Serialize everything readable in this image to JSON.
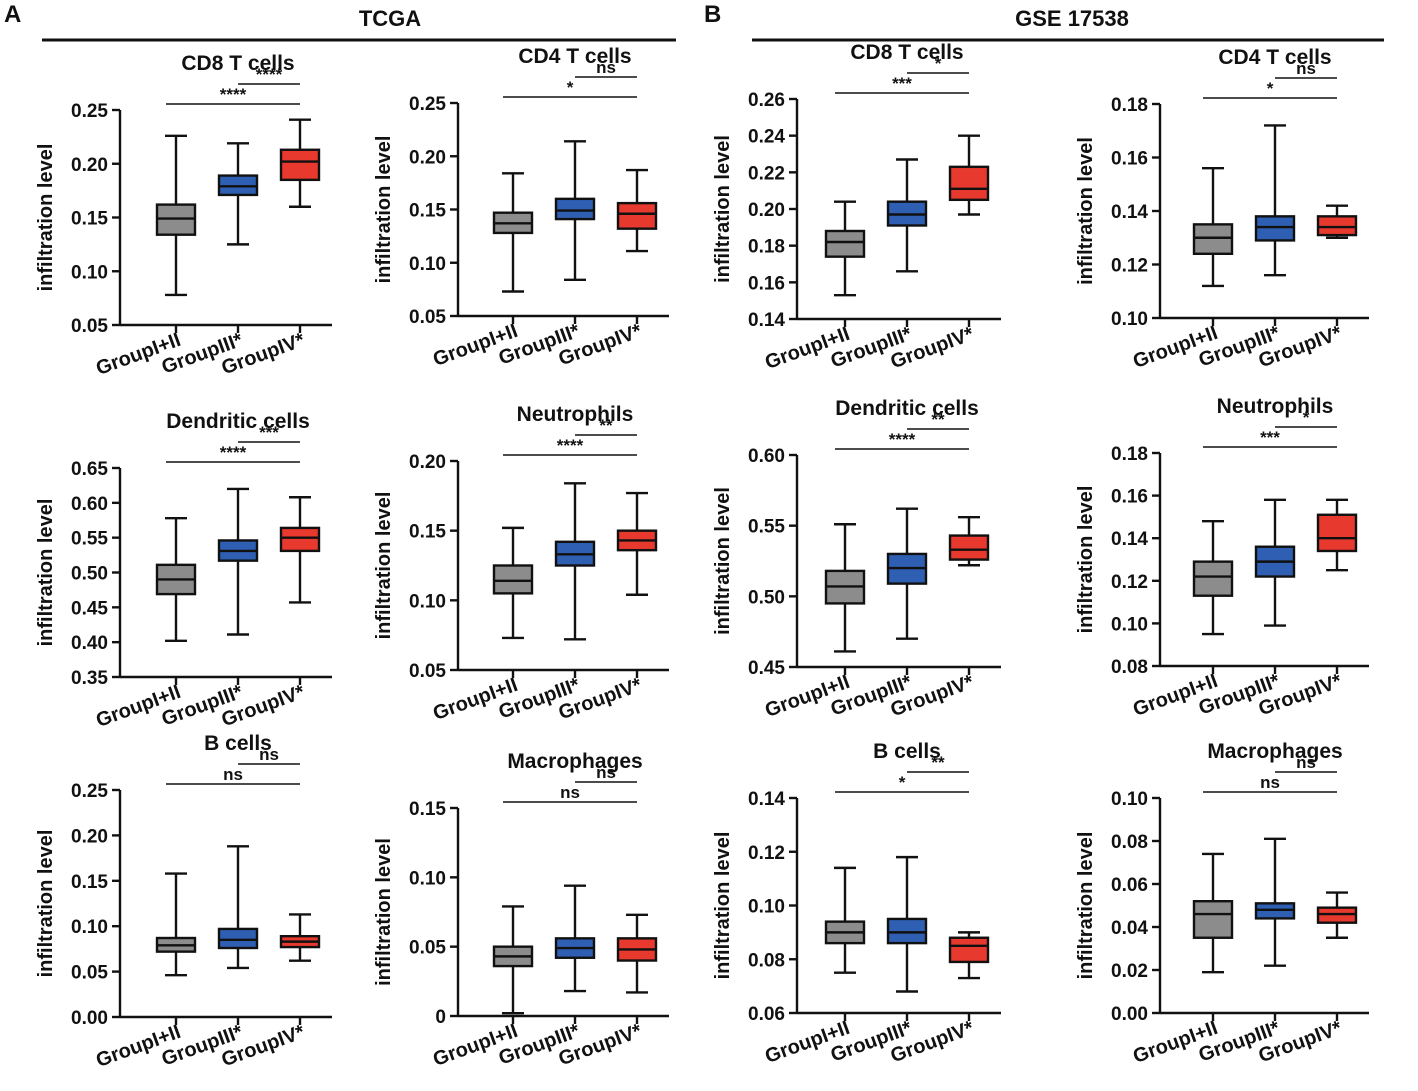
{
  "figure": {
    "panels": [
      {
        "letter": "A",
        "title": "TCGA"
      },
      {
        "letter": "B",
        "title": "GSE 17538"
      }
    ],
    "colors": {
      "group1": "#8c8c8c",
      "group2": "#2f5fb3",
      "group3": "#e8392e",
      "ink": "#111111"
    }
  },
  "chart_data": [
    {
      "type": "box",
      "panel": "A",
      "title": "CD8 T cells",
      "ylabel": "infiltration level",
      "categories": [
        "GroupI+II",
        "GroupIII*",
        "GroupIV*"
      ],
      "ylim": [
        0.05,
        0.25
      ],
      "yticks": [
        0.05,
        0.1,
        0.15,
        0.2,
        0.25
      ],
      "ytick_labels": [
        "0.05",
        "0.10",
        "0.15",
        "0.20",
        "0.25"
      ],
      "series": [
        {
          "name": "GroupI+II",
          "min": 0.078,
          "q1": 0.134,
          "median": 0.149,
          "q3": 0.162,
          "max": 0.226
        },
        {
          "name": "GroupIII*",
          "min": 0.125,
          "q1": 0.171,
          "median": 0.179,
          "q3": 0.189,
          "max": 0.219
        },
        {
          "name": "GroupIV*",
          "min": 0.16,
          "q1": 0.185,
          "median": 0.202,
          "q3": 0.213,
          "max": 0.241
        }
      ],
      "significance": [
        {
          "from": 0,
          "to": 2,
          "label": "****"
        },
        {
          "from": 1,
          "to": 2,
          "label": "****"
        }
      ]
    },
    {
      "type": "box",
      "panel": "A",
      "title": "CD4 T cells",
      "ylabel": "infiltration level",
      "categories": [
        "GroupI+II",
        "GroupIII*",
        "GroupIV*"
      ],
      "ylim": [
        0.05,
        0.25
      ],
      "yticks": [
        0.05,
        0.1,
        0.15,
        0.2,
        0.25
      ],
      "ytick_labels": [
        "0.05",
        "0.10",
        "0.15",
        "0.20",
        "0.25"
      ],
      "series": [
        {
          "name": "GroupI+II",
          "min": 0.073,
          "q1": 0.128,
          "median": 0.137,
          "q3": 0.147,
          "max": 0.184
        },
        {
          "name": "GroupIII*",
          "min": 0.084,
          "q1": 0.141,
          "median": 0.149,
          "q3": 0.16,
          "max": 0.214
        },
        {
          "name": "GroupIV*",
          "min": 0.111,
          "q1": 0.132,
          "median": 0.146,
          "q3": 0.156,
          "max": 0.187
        }
      ],
      "significance": [
        {
          "from": 0,
          "to": 2,
          "label": "*"
        },
        {
          "from": 1,
          "to": 2,
          "label": "ns"
        }
      ]
    },
    {
      "type": "box",
      "panel": "B",
      "title": "CD8 T cells",
      "ylabel": "infiltration level",
      "categories": [
        "GroupI+II",
        "GroupIII*",
        "GroupIV*"
      ],
      "ylim": [
        0.14,
        0.26
      ],
      "yticks": [
        0.14,
        0.16,
        0.18,
        0.2,
        0.22,
        0.24,
        0.26
      ],
      "ytick_labels": [
        "0.14",
        "0.16",
        "0.18",
        "0.20",
        "0.22",
        "0.24",
        "0.26"
      ],
      "series": [
        {
          "name": "GroupI+II",
          "min": 0.153,
          "q1": 0.174,
          "median": 0.182,
          "q3": 0.188,
          "max": 0.204
        },
        {
          "name": "GroupIII*",
          "min": 0.166,
          "q1": 0.191,
          "median": 0.197,
          "q3": 0.204,
          "max": 0.227
        },
        {
          "name": "GroupIV*",
          "min": 0.197,
          "q1": 0.205,
          "median": 0.211,
          "q3": 0.223,
          "max": 0.24
        }
      ],
      "significance": [
        {
          "from": 0,
          "to": 2,
          "label": "***"
        },
        {
          "from": 1,
          "to": 2,
          "label": "*"
        }
      ]
    },
    {
      "type": "box",
      "panel": "B",
      "title": "CD4 T cells",
      "ylabel": "infiltration level",
      "categories": [
        "GroupI+II",
        "GroupIII*",
        "GroupIV*"
      ],
      "ylim": [
        0.1,
        0.18
      ],
      "yticks": [
        0.1,
        0.12,
        0.14,
        0.16,
        0.18
      ],
      "ytick_labels": [
        "0.10",
        "0.12",
        "0.14",
        "0.16",
        "0.18"
      ],
      "series": [
        {
          "name": "GroupI+II",
          "min": 0.112,
          "q1": 0.124,
          "median": 0.13,
          "q3": 0.135,
          "max": 0.156
        },
        {
          "name": "GroupIII*",
          "min": 0.116,
          "q1": 0.129,
          "median": 0.134,
          "q3": 0.138,
          "max": 0.172
        },
        {
          "name": "GroupIV*",
          "min": 0.13,
          "q1": 0.131,
          "median": 0.134,
          "q3": 0.138,
          "max": 0.142
        }
      ],
      "significance": [
        {
          "from": 0,
          "to": 2,
          "label": "*"
        },
        {
          "from": 1,
          "to": 2,
          "label": "ns"
        }
      ]
    },
    {
      "type": "box",
      "panel": "A",
      "title": "Dendritic cells",
      "ylabel": "infiltration level",
      "categories": [
        "GroupI+II",
        "GroupIII*",
        "GroupIV*"
      ],
      "ylim": [
        0.35,
        0.65
      ],
      "yticks": [
        0.35,
        0.4,
        0.45,
        0.5,
        0.55,
        0.6,
        0.65
      ],
      "ytick_labels": [
        "0.35",
        "0.40",
        "0.45",
        "0.50",
        "0.55",
        "0.60",
        "0.65"
      ],
      "series": [
        {
          "name": "GroupI+II",
          "min": 0.402,
          "q1": 0.469,
          "median": 0.49,
          "q3": 0.511,
          "max": 0.578
        },
        {
          "name": "GroupIII*",
          "min": 0.411,
          "q1": 0.517,
          "median": 0.531,
          "q3": 0.546,
          "max": 0.62
        },
        {
          "name": "GroupIV*",
          "min": 0.457,
          "q1": 0.531,
          "median": 0.55,
          "q3": 0.564,
          "max": 0.608
        }
      ],
      "significance": [
        {
          "from": 0,
          "to": 2,
          "label": "****"
        },
        {
          "from": 1,
          "to": 2,
          "label": "***"
        }
      ]
    },
    {
      "type": "box",
      "panel": "A",
      "title": "Neutrophils",
      "ylabel": "infiltration level",
      "categories": [
        "GroupI+II",
        "GroupIII*",
        "GroupIV*"
      ],
      "ylim": [
        0.05,
        0.2
      ],
      "yticks": [
        0.05,
        0.1,
        0.15,
        0.2
      ],
      "ytick_labels": [
        "0.05",
        "0.10",
        "0.15",
        "0.20"
      ],
      "series": [
        {
          "name": "GroupI+II",
          "min": 0.073,
          "q1": 0.105,
          "median": 0.114,
          "q3": 0.125,
          "max": 0.152
        },
        {
          "name": "GroupIII*",
          "min": 0.072,
          "q1": 0.125,
          "median": 0.133,
          "q3": 0.142,
          "max": 0.184
        },
        {
          "name": "GroupIV*",
          "min": 0.104,
          "q1": 0.136,
          "median": 0.143,
          "q3": 0.15,
          "max": 0.177
        }
      ],
      "significance": [
        {
          "from": 0,
          "to": 2,
          "label": "****"
        },
        {
          "from": 1,
          "to": 2,
          "label": "**"
        }
      ]
    },
    {
      "type": "box",
      "panel": "B",
      "title": "Dendritic cells",
      "ylabel": "infiltration level",
      "categories": [
        "GroupI+II",
        "GroupIII*",
        "GroupIV*"
      ],
      "ylim": [
        0.45,
        0.6
      ],
      "yticks": [
        0.45,
        0.5,
        0.55,
        0.6
      ],
      "ytick_labels": [
        "0.45",
        "0.50",
        "0.55",
        "0.60"
      ],
      "series": [
        {
          "name": "GroupI+II",
          "min": 0.461,
          "q1": 0.495,
          "median": 0.507,
          "q3": 0.518,
          "max": 0.551
        },
        {
          "name": "GroupIII*",
          "min": 0.47,
          "q1": 0.509,
          "median": 0.52,
          "q3": 0.53,
          "max": 0.562
        },
        {
          "name": "GroupIV*",
          "min": 0.522,
          "q1": 0.526,
          "median": 0.533,
          "q3": 0.543,
          "max": 0.556
        }
      ],
      "significance": [
        {
          "from": 0,
          "to": 2,
          "label": "****"
        },
        {
          "from": 1,
          "to": 2,
          "label": "**"
        }
      ]
    },
    {
      "type": "box",
      "panel": "B",
      "title": "Neutrophils",
      "ylabel": "infiltration level",
      "categories": [
        "GroupI+II",
        "GroupIII*",
        "GroupIV*"
      ],
      "ylim": [
        0.08,
        0.18
      ],
      "yticks": [
        0.08,
        0.1,
        0.12,
        0.14,
        0.16,
        0.18
      ],
      "ytick_labels": [
        "0.08",
        "0.10",
        "0.12",
        "0.14",
        "0.16",
        "0.18"
      ],
      "series": [
        {
          "name": "GroupI+II",
          "min": 0.095,
          "q1": 0.113,
          "median": 0.122,
          "q3": 0.129,
          "max": 0.148
        },
        {
          "name": "GroupIII*",
          "min": 0.099,
          "q1": 0.122,
          "median": 0.129,
          "q3": 0.136,
          "max": 0.158
        },
        {
          "name": "GroupIV*",
          "min": 0.125,
          "q1": 0.134,
          "median": 0.14,
          "q3": 0.151,
          "max": 0.158
        }
      ],
      "significance": [
        {
          "from": 0,
          "to": 2,
          "label": "***"
        },
        {
          "from": 1,
          "to": 2,
          "label": "*"
        }
      ]
    },
    {
      "type": "box",
      "panel": "A",
      "title": "B cells",
      "ylabel": "infiltration level",
      "categories": [
        "GroupI+II",
        "GroupIII*",
        "GroupIV*"
      ],
      "ylim": [
        0.0,
        0.25
      ],
      "yticks": [
        0.0,
        0.05,
        0.1,
        0.15,
        0.2,
        0.25
      ],
      "ytick_labels": [
        "0.00",
        "0.05",
        "0.10",
        "0.15",
        "0.20",
        "0.25"
      ],
      "series": [
        {
          "name": "GroupI+II",
          "min": 0.046,
          "q1": 0.072,
          "median": 0.079,
          "q3": 0.087,
          "max": 0.158
        },
        {
          "name": "GroupIII*",
          "min": 0.054,
          "q1": 0.076,
          "median": 0.085,
          "q3": 0.097,
          "max": 0.188
        },
        {
          "name": "GroupIV*",
          "min": 0.062,
          "q1": 0.077,
          "median": 0.083,
          "q3": 0.089,
          "max": 0.113
        }
      ],
      "significance": [
        {
          "from": 0,
          "to": 2,
          "label": "ns"
        },
        {
          "from": 1,
          "to": 2,
          "label": "ns"
        }
      ]
    },
    {
      "type": "box",
      "panel": "A",
      "title": "Macrophages",
      "ylabel": "infiltration level",
      "categories": [
        "GroupI+II",
        "GroupIII*",
        "GroupIV*"
      ],
      "ylim": [
        0.0,
        0.15
      ],
      "yticks": [
        0.0,
        0.05,
        0.1,
        0.15
      ],
      "ytick_labels": [
        "0",
        "0.05",
        "0.10",
        "0.15"
      ],
      "series": [
        {
          "name": "GroupI+II",
          "min": 0.002,
          "q1": 0.036,
          "median": 0.043,
          "q3": 0.05,
          "max": 0.079
        },
        {
          "name": "GroupIII*",
          "min": 0.018,
          "q1": 0.042,
          "median": 0.049,
          "q3": 0.056,
          "max": 0.094
        },
        {
          "name": "GroupIV*",
          "min": 0.017,
          "q1": 0.04,
          "median": 0.048,
          "q3": 0.056,
          "max": 0.073
        }
      ],
      "significance": [
        {
          "from": 0,
          "to": 2,
          "label": "ns"
        },
        {
          "from": 1,
          "to": 2,
          "label": "ns"
        }
      ]
    },
    {
      "type": "box",
      "panel": "B",
      "title": "B cells",
      "ylabel": "infiltration level",
      "categories": [
        "GroupI+II",
        "GroupIII*",
        "GroupIV*"
      ],
      "ylim": [
        0.06,
        0.14
      ],
      "yticks": [
        0.06,
        0.08,
        0.1,
        0.12,
        0.14
      ],
      "ytick_labels": [
        "0.06",
        "0.08",
        "0.10",
        "0.12",
        "0.14"
      ],
      "series": [
        {
          "name": "GroupI+II",
          "min": 0.075,
          "q1": 0.086,
          "median": 0.09,
          "q3": 0.094,
          "max": 0.114
        },
        {
          "name": "GroupIII*",
          "min": 0.068,
          "q1": 0.086,
          "median": 0.09,
          "q3": 0.095,
          "max": 0.118
        },
        {
          "name": "GroupIV*",
          "min": 0.073,
          "q1": 0.079,
          "median": 0.085,
          "q3": 0.088,
          "max": 0.09
        }
      ],
      "significance": [
        {
          "from": 0,
          "to": 2,
          "label": "*"
        },
        {
          "from": 1,
          "to": 2,
          "label": "**"
        }
      ]
    },
    {
      "type": "box",
      "panel": "B",
      "title": "Macrophages",
      "ylabel": "infiltration level",
      "categories": [
        "GroupI+II",
        "GroupIII*",
        "GroupIV*"
      ],
      "ylim": [
        0.0,
        0.1
      ],
      "yticks": [
        0.0,
        0.02,
        0.04,
        0.06,
        0.08,
        0.1
      ],
      "ytick_labels": [
        "0.00",
        "0.02",
        "0.04",
        "0.06",
        "0.08",
        "0.10"
      ],
      "series": [
        {
          "name": "GroupI+II",
          "min": 0.019,
          "q1": 0.035,
          "median": 0.046,
          "q3": 0.052,
          "max": 0.074
        },
        {
          "name": "GroupIII*",
          "min": 0.022,
          "q1": 0.044,
          "median": 0.048,
          "q3": 0.051,
          "max": 0.081
        },
        {
          "name": "GroupIV*",
          "min": 0.035,
          "q1": 0.042,
          "median": 0.046,
          "q3": 0.049,
          "max": 0.056
        }
      ],
      "significance": [
        {
          "from": 0,
          "to": 2,
          "label": "ns"
        },
        {
          "from": 1,
          "to": 2,
          "label": "ns"
        }
      ]
    }
  ]
}
